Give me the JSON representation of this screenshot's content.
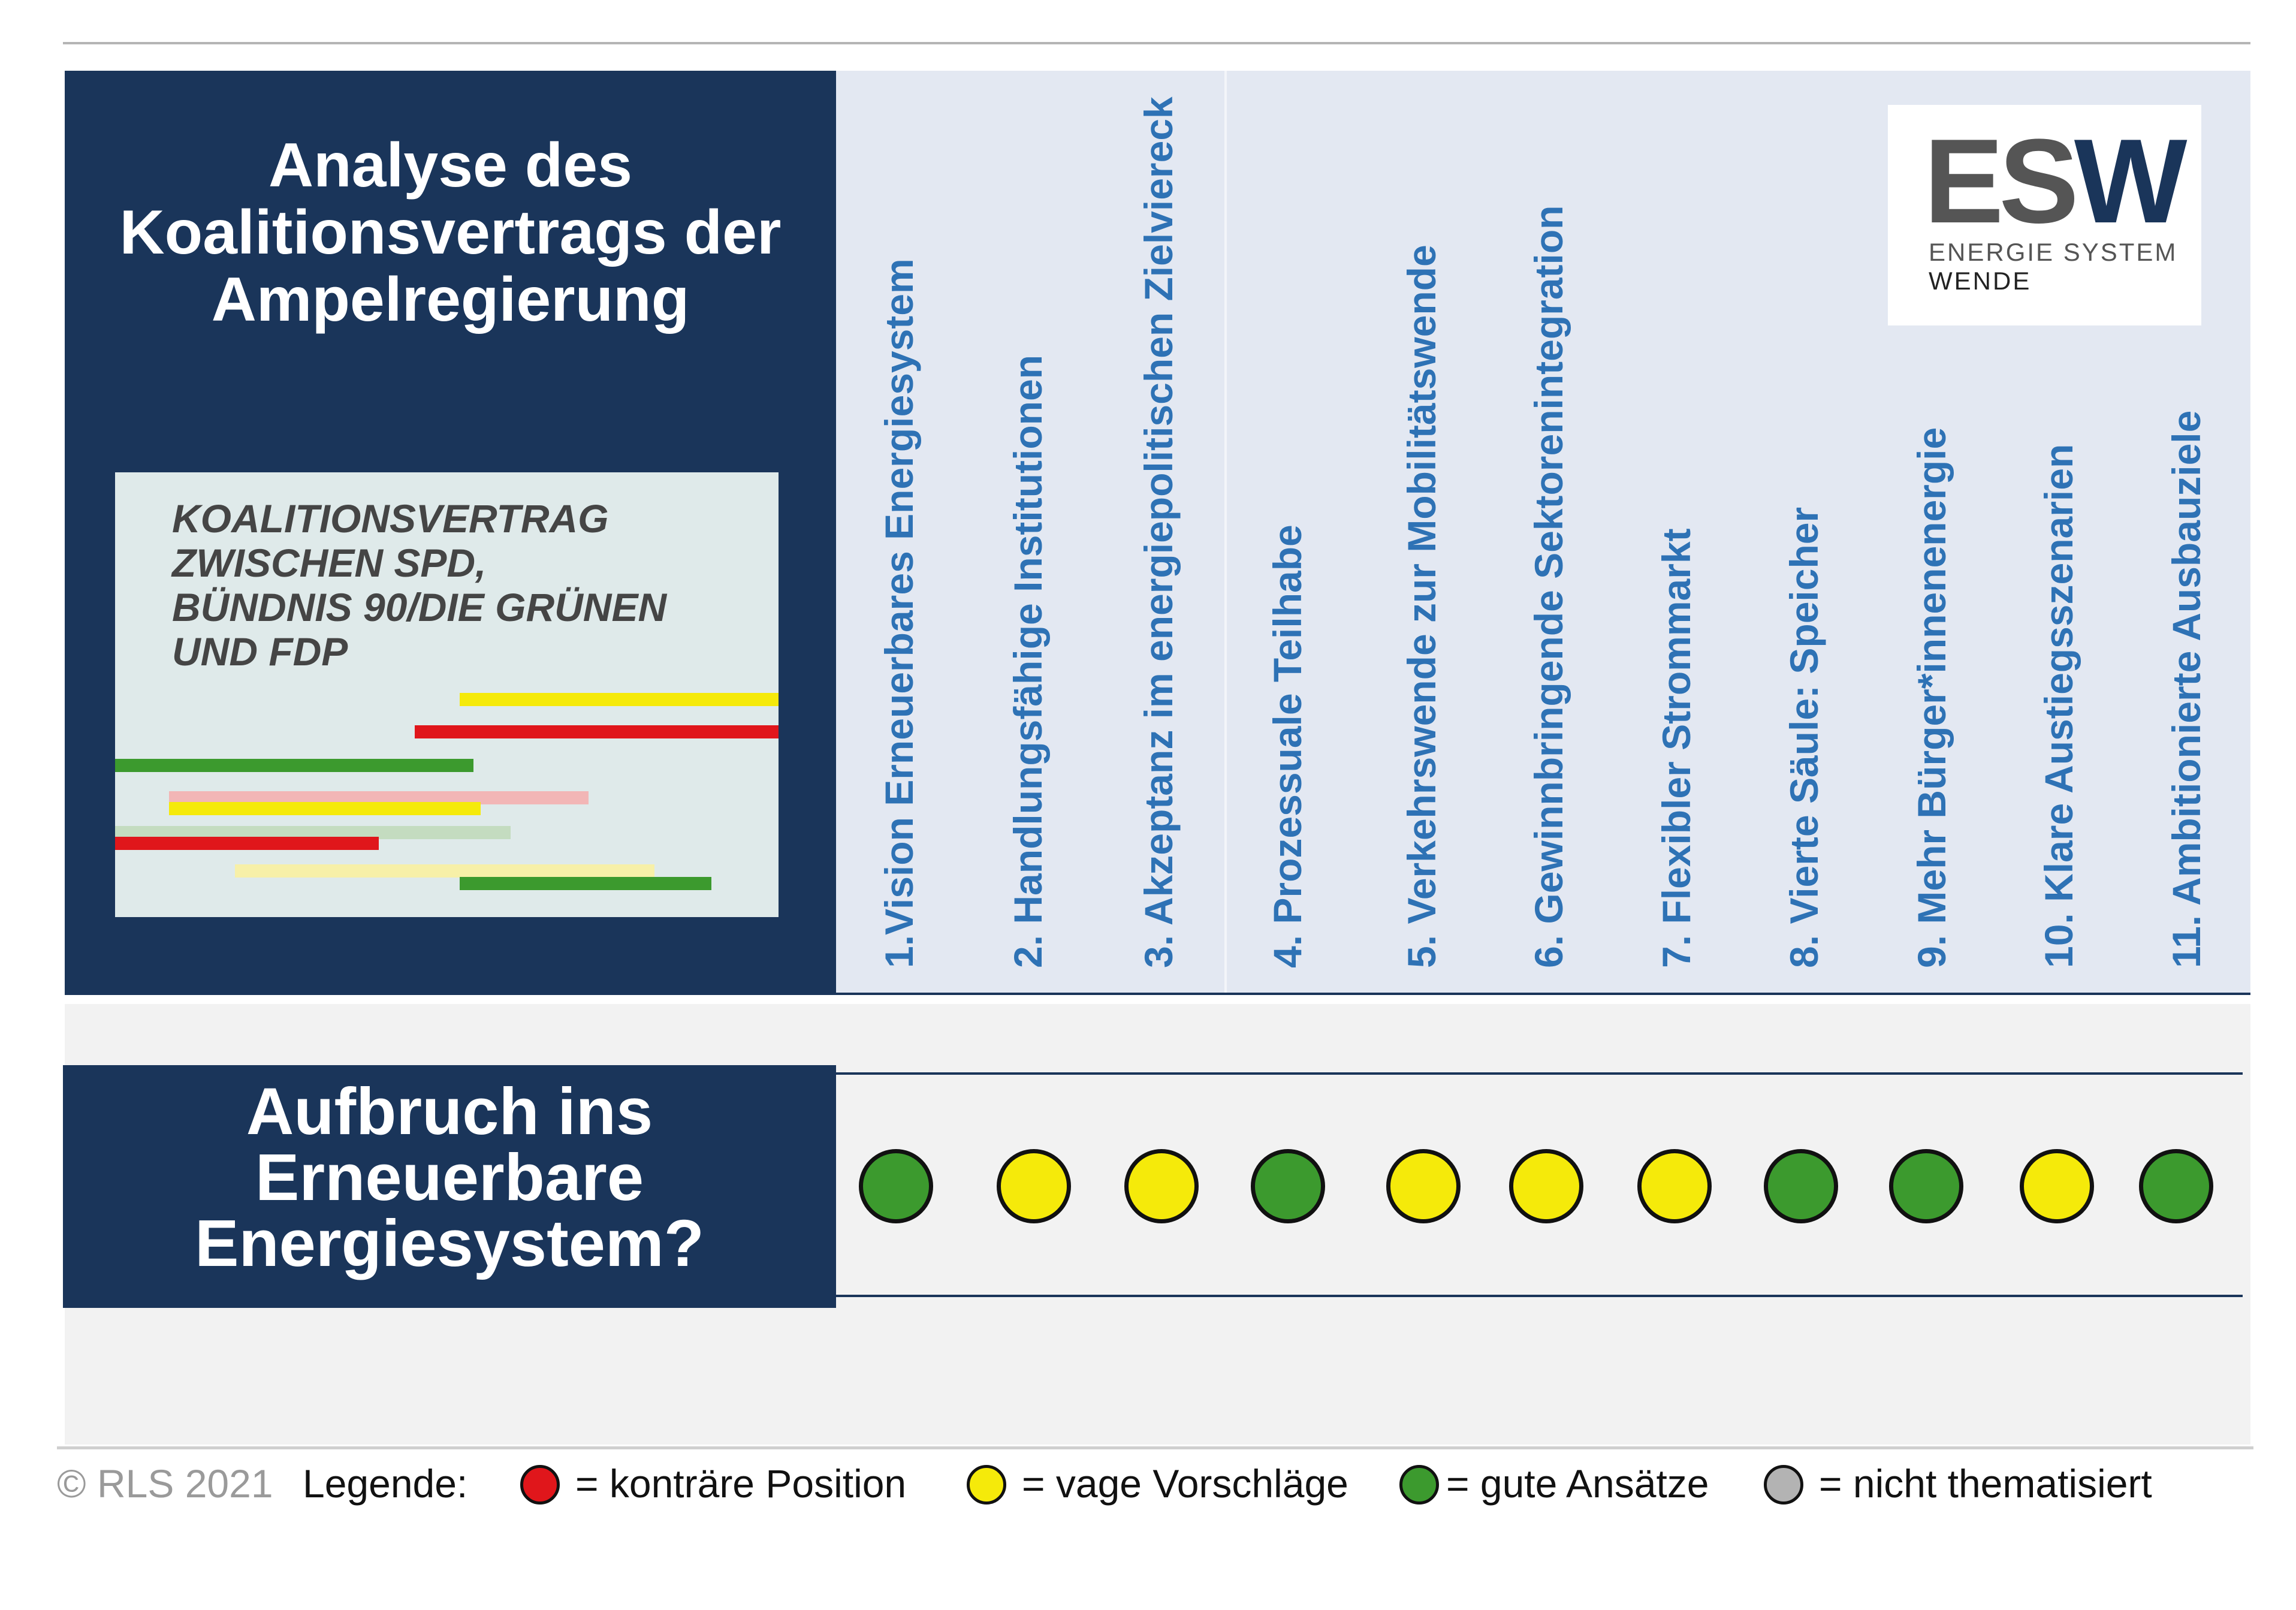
{
  "title": {
    "lines": [
      "Analyse des",
      "Koalitionsvertrags der",
      "Ampelregierung"
    ]
  },
  "cover": {
    "lines": [
      "KOALITIONSVERTRAG",
      "ZWISCHEN SPD,",
      "BÜNDNIS 90/DIE GRÜNEN",
      "UND FDP"
    ]
  },
  "logo": {
    "mark_left": "ES",
    "mark_right": "W",
    "line1": "ENERGIE SYSTEM",
    "line2": "WENDE"
  },
  "criteria": [
    {
      "label": "1.Vision Erneuerbares Energiesystem",
      "rating": "good"
    },
    {
      "label": "2. Handlungsfähige Institutionen",
      "rating": "vague"
    },
    {
      "label": "3. Akzeptanz im energiepolitischen Zielviereck",
      "rating": "vague"
    },
    {
      "label": "4. Prozessuale Teilhabe",
      "rating": "good"
    },
    {
      "label": "5. Verkehrswende zur Mobilitätswende",
      "rating": "vague"
    },
    {
      "label": "6. Gewinnbringende Sektorenintegration",
      "rating": "vague"
    },
    {
      "label": "7. Flexibler Strommarkt",
      "rating": "vague"
    },
    {
      "label": "8. Vierte Säule: Speicher",
      "rating": "good"
    },
    {
      "label": "9. Mehr Bürger*innenenergie",
      "rating": "good"
    },
    {
      "label": "10. Klare Austiegsszenarien",
      "rating": "vague"
    },
    {
      "label": "11. Ambitionierte Ausbauziele",
      "rating": "good"
    }
  ],
  "question": {
    "lines": [
      "Aufbruch ins",
      "Erneuerbare",
      "Energiesystem?"
    ]
  },
  "footer": {
    "copyright": "© RLS 2021",
    "legend_label": "Legende:",
    "legend": [
      {
        "key": "contrary",
        "text": "= konträre Position"
      },
      {
        "key": "vague",
        "text": "= vage Vorschläge"
      },
      {
        "key": "good",
        "text": "= gute Ansätze"
      },
      {
        "key": "none",
        "text": "= nicht thematisiert"
      }
    ]
  },
  "colors": {
    "navy": "#1a355a",
    "criteria_text": "#2e72b5",
    "contrary": "#e0161b",
    "vague": "#f5ea0a",
    "good": "#3c9a2e",
    "none": "#b3b3b3",
    "logo_grey": "#555555",
    "logo_navy": "#1a355a"
  }
}
